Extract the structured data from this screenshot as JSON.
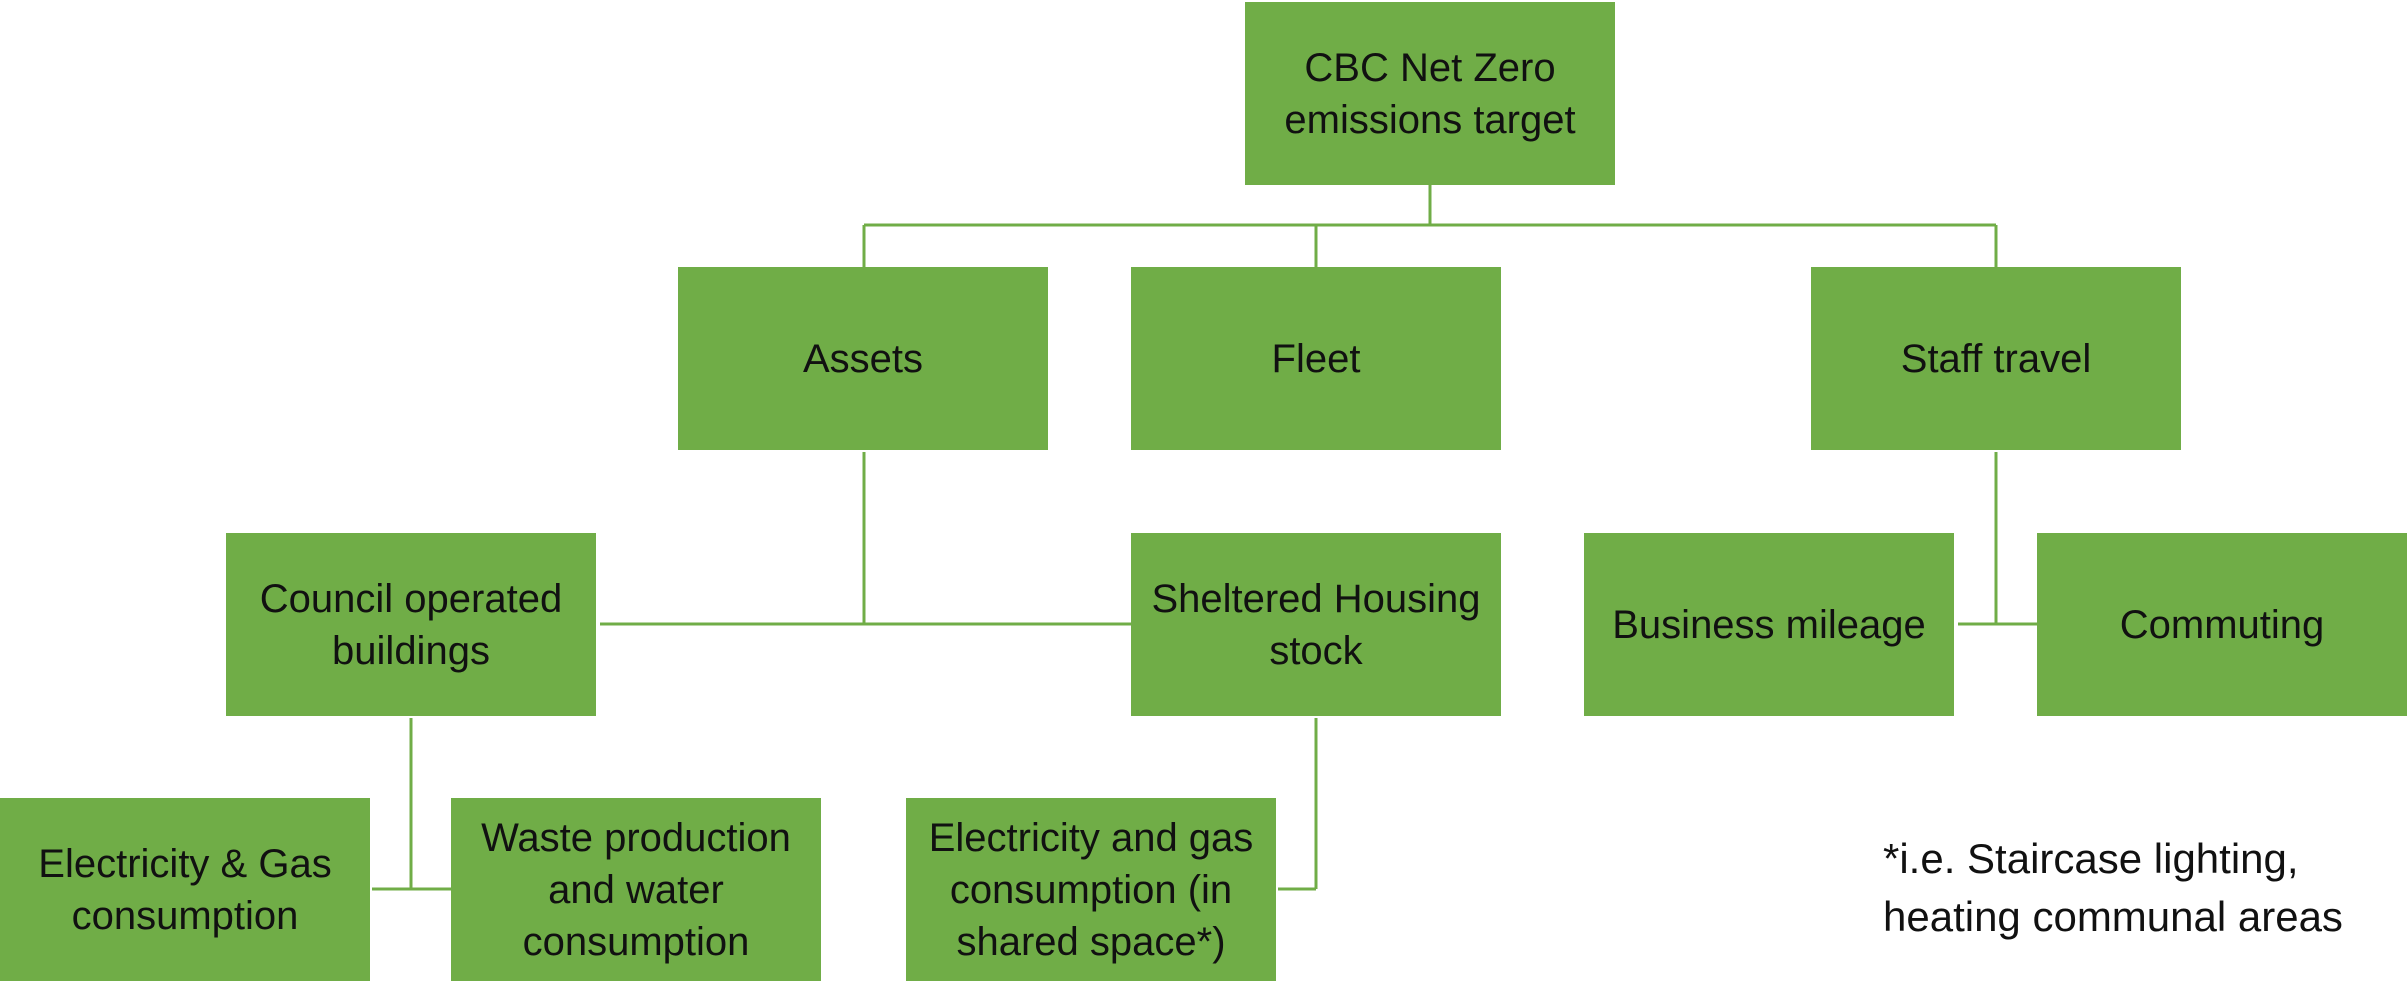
{
  "nodes": [
    {
      "label": "CBC Net Zero emissions target"
    },
    {
      "label": "Assets"
    },
    {
      "label": "Fleet"
    },
    {
      "label": "Staff travel"
    },
    {
      "label": "Council operated buildings"
    },
    {
      "label": "Sheltered Housing stock"
    },
    {
      "label": "Business mileage"
    },
    {
      "label": "Commuting"
    },
    {
      "label": "Electricity & Gas consumption"
    },
    {
      "label": "Waste production and water consumption"
    },
    {
      "label": "Electricity and gas consumption (in shared space*)"
    }
  ],
  "note": "*i.e. Staircase lighting, heating communal areas"
}
